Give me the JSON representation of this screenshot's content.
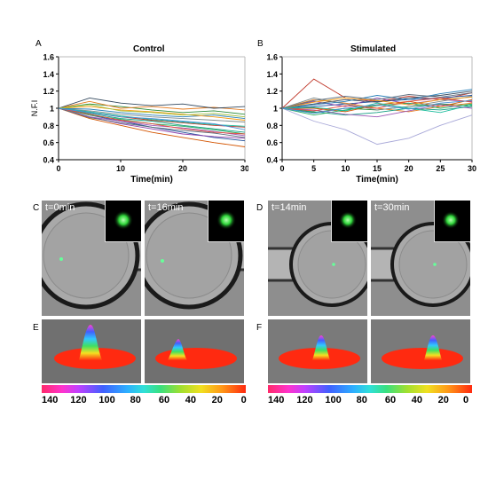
{
  "panels": {
    "A": {
      "letter": "A",
      "title": "Control"
    },
    "B": {
      "letter": "B",
      "title": "Stimulated"
    },
    "C": {
      "letter": "C",
      "times": [
        "t=0min",
        "t=16min"
      ]
    },
    "D": {
      "letter": "D",
      "times": [
        "t=14min",
        "t=30min"
      ]
    },
    "E": {
      "letter": "E"
    },
    "F": {
      "letter": "F"
    }
  },
  "colorbar": {
    "labels": [
      "140",
      "120",
      "100",
      "80",
      "60",
      "40",
      "20",
      "0"
    ],
    "range": [
      140,
      0
    ]
  },
  "chart_data": [
    {
      "type": "line",
      "panel": "A",
      "title": "Control",
      "xlabel": "Time(min)",
      "ylabel": "N.F.I",
      "xlim": [
        0,
        30
      ],
      "ylim": [
        0.4,
        1.6
      ],
      "xticks": [
        "0",
        "10",
        "20",
        "30"
      ],
      "yticks": [
        "0.4",
        "0.6",
        "0.8",
        "1",
        "1.2",
        "1.4",
        "1.6"
      ],
      "series": [
        {
          "color": "#1f4e9a",
          "x": [
            0,
            5,
            10,
            15,
            20,
            25,
            30
          ],
          "y": [
            1,
            0.92,
            0.85,
            0.78,
            0.72,
            0.66,
            0.62
          ]
        },
        {
          "color": "#2b8c3a",
          "x": [
            0,
            5,
            10,
            15,
            20,
            25,
            30
          ],
          "y": [
            1,
            1.05,
            1.02,
            0.98,
            0.95,
            0.97,
            0.93
          ]
        },
        {
          "color": "#c0392b",
          "x": [
            0,
            5,
            10,
            15,
            20,
            25,
            30
          ],
          "y": [
            1,
            0.95,
            0.9,
            0.86,
            0.83,
            0.8,
            0.78
          ]
        },
        {
          "color": "#8e44ad",
          "x": [
            0,
            5,
            10,
            15,
            20,
            25,
            30
          ],
          "y": [
            1,
            0.9,
            0.82,
            0.76,
            0.7,
            0.67,
            0.65
          ]
        },
        {
          "color": "#e67e22",
          "x": [
            0,
            5,
            10,
            15,
            20,
            25,
            30
          ],
          "y": [
            1,
            1.08,
            1.0,
            1.02,
            0.99,
            1.01,
            0.98
          ]
        },
        {
          "color": "#16a085",
          "x": [
            0,
            5,
            10,
            15,
            20,
            25,
            30
          ],
          "y": [
            1,
            0.94,
            0.88,
            0.85,
            0.8,
            0.76,
            0.72
          ]
        },
        {
          "color": "#34495e",
          "x": [
            0,
            5,
            10,
            15,
            20,
            25,
            30
          ],
          "y": [
            1,
            1.12,
            1.06,
            1.03,
            1.05,
            1.0,
            1.02
          ]
        },
        {
          "color": "#d35400",
          "x": [
            0,
            5,
            10,
            15,
            20,
            25,
            30
          ],
          "y": [
            1,
            0.88,
            0.8,
            0.72,
            0.66,
            0.6,
            0.55
          ]
        },
        {
          "color": "#7f8c8d",
          "x": [
            0,
            5,
            10,
            15,
            20,
            25,
            30
          ],
          "y": [
            1,
            0.97,
            0.93,
            0.9,
            0.88,
            0.86,
            0.84
          ]
        },
        {
          "color": "#27ae60",
          "x": [
            0,
            5,
            10,
            15,
            20,
            25,
            30
          ],
          "y": [
            1,
            0.92,
            0.87,
            0.82,
            0.79,
            0.75,
            0.7
          ]
        },
        {
          "color": "#2980b9",
          "x": [
            0,
            5,
            10,
            15,
            20,
            25,
            30
          ],
          "y": [
            1,
            0.99,
            0.95,
            0.92,
            0.9,
            0.92,
            0.88
          ]
        },
        {
          "color": "#9b59b6",
          "x": [
            0,
            5,
            10,
            15,
            20,
            25,
            30
          ],
          "y": [
            1,
            0.9,
            0.85,
            0.8,
            0.77,
            0.73,
            0.68
          ]
        },
        {
          "color": "#f39c12",
          "x": [
            0,
            5,
            10,
            15,
            20,
            25,
            30
          ],
          "y": [
            1,
            1.02,
            0.98,
            0.96,
            0.93,
            0.9,
            0.86
          ]
        },
        {
          "color": "#1abc9c",
          "x": [
            0,
            5,
            10,
            15,
            20,
            25,
            30
          ],
          "y": [
            1,
            0.96,
            0.91,
            0.87,
            0.84,
            0.81,
            0.79
          ]
        },
        {
          "color": "#e74c3c",
          "x": [
            0,
            5,
            10,
            15,
            20,
            25,
            30
          ],
          "y": [
            1,
            0.93,
            0.86,
            0.82,
            0.76,
            0.72,
            0.7
          ]
        },
        {
          "color": "#5d6d7e",
          "x": [
            0,
            5,
            10,
            15,
            20,
            25,
            30
          ],
          "y": [
            1,
            0.89,
            0.83,
            0.78,
            0.74,
            0.71,
            0.66
          ]
        },
        {
          "color": "#a0c040",
          "x": [
            0,
            5,
            10,
            15,
            20,
            25,
            30
          ],
          "y": [
            1,
            1.04,
            0.97,
            0.95,
            0.92,
            0.94,
            0.9
          ]
        },
        {
          "color": "#4a90d9",
          "x": [
            0,
            5,
            10,
            15,
            20,
            25,
            30
          ],
          "y": [
            1,
            0.95,
            0.9,
            0.88,
            0.85,
            0.82,
            0.75
          ]
        }
      ]
    },
    {
      "type": "line",
      "panel": "B",
      "title": "Stimulated",
      "xlabel": "Time(min)",
      "ylabel": "",
      "xlim": [
        0,
        30
      ],
      "ylim": [
        0.4,
        1.6
      ],
      "xticks": [
        "0",
        "5",
        "10",
        "15",
        "20",
        "25",
        "30"
      ],
      "yticks": [
        "0.4",
        "0.6",
        "0.8",
        "1",
        "1.2",
        "1.4",
        "1.6"
      ],
      "series": [
        {
          "color": "#c0392b",
          "x": [
            0,
            5,
            10,
            15,
            20,
            25,
            30
          ],
          "y": [
            1,
            1.34,
            1.12,
            1.08,
            1.14,
            1.1,
            1.18
          ]
        },
        {
          "color": "#1f4e9a",
          "x": [
            0,
            5,
            10,
            15,
            20,
            25,
            30
          ],
          "y": [
            1,
            1.02,
            1.05,
            1.08,
            1.1,
            1.12,
            1.15
          ]
        },
        {
          "color": "#2b8c3a",
          "x": [
            0,
            5,
            10,
            15,
            20,
            25,
            30
          ],
          "y": [
            1,
            0.95,
            1.0,
            0.98,
            1.02,
            1.05,
            1.03
          ]
        },
        {
          "color": "#8e44ad",
          "x": [
            0,
            5,
            10,
            15,
            20,
            25,
            30
          ],
          "y": [
            1,
            1.08,
            1.02,
            1.12,
            1.05,
            1.1,
            1.08
          ]
        },
        {
          "color": "#a8a8d8",
          "x": [
            0,
            5,
            10,
            15,
            20,
            25,
            30
          ],
          "y": [
            1,
            0.85,
            0.75,
            0.58,
            0.65,
            0.8,
            0.92
          ]
        },
        {
          "color": "#e67e22",
          "x": [
            0,
            5,
            10,
            15,
            20,
            25,
            30
          ],
          "y": [
            1,
            1.1,
            1.06,
            1.0,
            0.96,
            1.02,
            1.06
          ]
        },
        {
          "color": "#16a085",
          "x": [
            0,
            5,
            10,
            15,
            20,
            25,
            30
          ],
          "y": [
            1,
            0.96,
            0.92,
            0.95,
            1.0,
            0.98,
            1.02
          ]
        },
        {
          "color": "#34495e",
          "x": [
            0,
            5,
            10,
            15,
            20,
            25,
            30
          ],
          "y": [
            1,
            1.05,
            1.1,
            1.07,
            1.12,
            1.15,
            1.2
          ]
        },
        {
          "color": "#d35400",
          "x": [
            0,
            5,
            10,
            15,
            20,
            25,
            30
          ],
          "y": [
            1,
            1.0,
            0.96,
            1.04,
            1.08,
            1.02,
            1.1
          ]
        },
        {
          "color": "#7f8c8d",
          "x": [
            0,
            5,
            10,
            15,
            20,
            25,
            30
          ],
          "y": [
            1,
            1.12,
            1.05,
            0.98,
            1.02,
            1.08,
            1.14
          ]
        },
        {
          "color": "#27ae60",
          "x": [
            0,
            5,
            10,
            15,
            20,
            25,
            30
          ],
          "y": [
            1,
            0.92,
            0.98,
            1.03,
            1.06,
            1.0,
            1.05
          ]
        },
        {
          "color": "#2980b9",
          "x": [
            0,
            5,
            10,
            15,
            20,
            25,
            30
          ],
          "y": [
            1,
            1.04,
            1.08,
            1.15,
            1.1,
            1.17,
            1.22
          ]
        },
        {
          "color": "#9b59b6",
          "x": [
            0,
            5,
            10,
            15,
            20,
            25,
            30
          ],
          "y": [
            1,
            0.98,
            0.93,
            0.9,
            0.97,
            1.04,
            1.0
          ]
        },
        {
          "color": "#f39c12",
          "x": [
            0,
            5,
            10,
            15,
            20,
            25,
            30
          ],
          "y": [
            1,
            1.07,
            1.12,
            1.09,
            1.04,
            1.1,
            1.13
          ]
        },
        {
          "color": "#e74c3c",
          "x": [
            0,
            5,
            10,
            15,
            20,
            25,
            30
          ],
          "y": [
            1,
            0.97,
            1.03,
            1.0,
            1.08,
            1.12,
            1.07
          ]
        },
        {
          "color": "#1abc9c",
          "x": [
            0,
            5,
            10,
            15,
            20,
            25,
            30
          ],
          "y": [
            1,
            1.01,
            0.97,
            1.06,
            1.0,
            0.95,
            1.04
          ]
        },
        {
          "color": "#5d6d7e",
          "x": [
            0,
            5,
            10,
            15,
            20,
            25,
            30
          ],
          "y": [
            1,
            1.09,
            1.14,
            1.1,
            1.16,
            1.13,
            1.18
          ]
        },
        {
          "color": "#4a90d9",
          "x": [
            0,
            5,
            10,
            15,
            20,
            25,
            30
          ],
          "y": [
            1,
            0.94,
            1.0,
            1.04,
            0.99,
            1.06,
            1.09
          ]
        }
      ]
    }
  ]
}
